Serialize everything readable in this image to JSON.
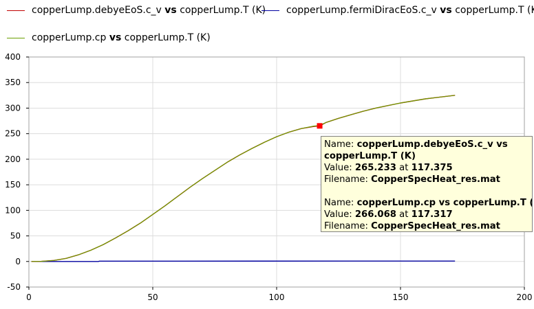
{
  "legend": [
    {
      "prefix": "copperLump.debyeEoS.c_v",
      "vs": "vs",
      "suffix": "copperLump.T (K)",
      "color": "#c00000"
    },
    {
      "prefix": "copperLump.fermiDiracEoS.c_v",
      "vs": "vs",
      "suffix": "copperLump.T (K)",
      "color": "#0000a0"
    },
    {
      "prefix": "copperLump.cp",
      "vs": "vs",
      "suffix": "copperLump.T (K)",
      "color": "#6aa000"
    }
  ],
  "tooltip": {
    "block1": {
      "name_label": "Name:",
      "name_line1": "copperLump.debyeEoS.c_v vs",
      "name_line2": "copperLump.T (K)",
      "value_label": "Value:",
      "value": "265.233",
      "at": "at",
      "x": "117.375",
      "file_label": "Filename:",
      "file": "CopperSpecHeat_res.mat"
    },
    "block2": {
      "name_label": "Name:",
      "name": "copperLump.cp vs copperLump.T (K)",
      "value_label": "Value:",
      "value": "266.068",
      "at": "at",
      "x": "117.317",
      "file_label": "Filename:",
      "file": "CopperSpecHeat_res.mat"
    }
  },
  "chart_data": {
    "type": "line",
    "xlim": [
      0,
      200
    ],
    "ylim": [
      -50,
      400
    ],
    "xticks": [
      0,
      50,
      100,
      150,
      200
    ],
    "yticks": [
      -50,
      0,
      50,
      100,
      150,
      200,
      250,
      300,
      350,
      400
    ],
    "grid": true,
    "legend_position": "top",
    "series": [
      {
        "name": "copperLump.debyeEoS.c_v vs copperLump.T (K)",
        "color": "#c00000",
        "x": [
          1,
          5,
          10,
          15,
          20,
          25,
          30,
          35,
          40,
          45,
          50,
          55,
          60,
          65,
          70,
          75,
          80,
          85,
          90,
          95,
          100,
          105,
          110,
          115,
          117.375,
          120,
          125,
          130,
          135,
          140,
          145,
          150,
          155,
          160,
          165,
          172
        ],
        "y": [
          0,
          0.3,
          2,
          6,
          13,
          22,
          33,
          46,
          60,
          75,
          92,
          109,
          127,
          145,
          162,
          178,
          194,
          208,
          221,
          233,
          244,
          253,
          260,
          264,
          265.2,
          272,
          280,
          287,
          294,
          300,
          305,
          310,
          314,
          318,
          321,
          325
        ]
      },
      {
        "name": "copperLump.fermiDiracEoS.c_v vs copperLump.T (K)",
        "color": "#0000a0",
        "x": [
          1,
          28,
          28.5,
          172
        ],
        "y": [
          0,
          0,
          0.6,
          0.8
        ]
      },
      {
        "name": "copperLump.cp vs copperLump.T (K)",
        "color": "#6aa000",
        "x": [
          1,
          5,
          10,
          15,
          20,
          25,
          30,
          35,
          40,
          45,
          50,
          55,
          60,
          65,
          70,
          75,
          80,
          85,
          90,
          95,
          100,
          105,
          110,
          115,
          117.317,
          120,
          125,
          130,
          135,
          140,
          145,
          150,
          155,
          160,
          165,
          172
        ],
        "y": [
          0,
          0.3,
          2,
          6,
          13,
          22,
          33,
          46,
          60,
          75,
          92,
          109,
          127,
          145,
          162,
          178,
          194,
          208,
          221,
          233,
          244,
          253,
          260,
          264.8,
          266.1,
          272,
          280,
          287,
          294,
          300,
          305,
          310,
          314,
          318,
          321,
          325
        ]
      }
    ],
    "marker": {
      "x": 117.375,
      "y": 265.233,
      "color": "#ff0000"
    }
  }
}
